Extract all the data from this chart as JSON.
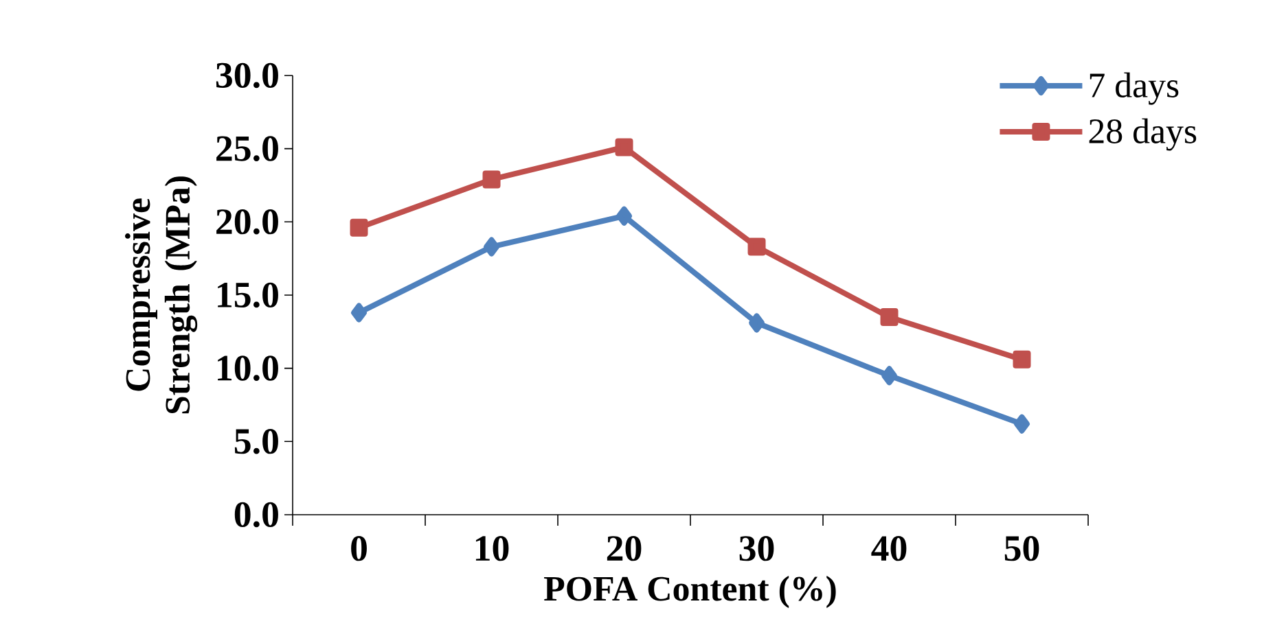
{
  "chart_data": {
    "type": "line",
    "xlabel": "POFA Content (%)",
    "ylabel": "Compressive Strength (MPa)",
    "categories": [
      "0",
      "10",
      "20",
      "30",
      "40",
      "50"
    ],
    "series": [
      {
        "name": "7 days",
        "color": "#4f81bd",
        "marker": "diamond",
        "values": [
          13.8,
          18.3,
          20.4,
          13.1,
          9.5,
          6.2
        ]
      },
      {
        "name": "28 days",
        "color": "#c0504d",
        "marker": "square",
        "values": [
          19.6,
          22.9,
          25.1,
          18.3,
          13.5,
          10.6
        ]
      }
    ],
    "ylim": [
      0,
      30
    ],
    "yticks": [
      {
        "value": 0,
        "label": "0.0"
      },
      {
        "value": 5,
        "label": "5.0"
      },
      {
        "value": 10,
        "label": "10.0"
      },
      {
        "value": 15,
        "label": "15.0"
      },
      {
        "value": 20,
        "label": "20.0"
      },
      {
        "value": 25,
        "label": "25.0"
      },
      {
        "value": 30,
        "label": "30.0"
      }
    ],
    "grid": false,
    "legend": "top right",
    "line_style": "solid"
  }
}
